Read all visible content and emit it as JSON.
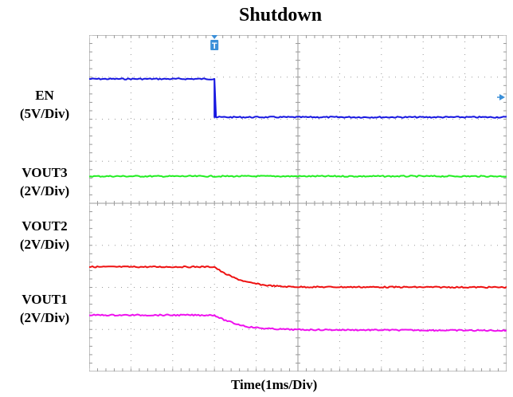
{
  "chart_data": {
    "type": "line",
    "title": "Shutdown",
    "xlabel": "Time(1ms/Div)",
    "x_divisions": 10,
    "y_divisions": 8,
    "trigger_marker": "T",
    "grid": true,
    "channels": [
      {
        "name": "EN",
        "scale": "(5V/Div)",
        "color": "#1616e0",
        "x": [
          0,
          3.0,
          3.0,
          10
        ],
        "y": [
          5.0,
          5.0,
          0,
          0
        ]
      },
      {
        "name": "VOUT3",
        "scale": "(2V/Div)",
        "color": "#22ee22",
        "x": [
          0,
          10
        ],
        "y": [
          3.3,
          3.3
        ]
      },
      {
        "name": "VOUT2",
        "scale": "(2V/Div)",
        "color": "#ee1111",
        "x": [
          0,
          3.0,
          3.2,
          3.5,
          3.8,
          4.2,
          4.6,
          5.0,
          10
        ],
        "y": [
          2.5,
          2.5,
          2.15,
          1.8,
          1.55,
          1.38,
          1.3,
          1.27,
          1.25
        ]
      },
      {
        "name": "VOUT1",
        "scale": "(2V/Div)",
        "color": "#ee11ee",
        "x": [
          0,
          3.0,
          3.2,
          3.5,
          3.8,
          4.2,
          4.6,
          5.0,
          10
        ],
        "y": [
          1.8,
          1.8,
          1.55,
          1.3,
          1.12,
          1.02,
          0.98,
          0.95,
          0.9
        ]
      }
    ]
  }
}
